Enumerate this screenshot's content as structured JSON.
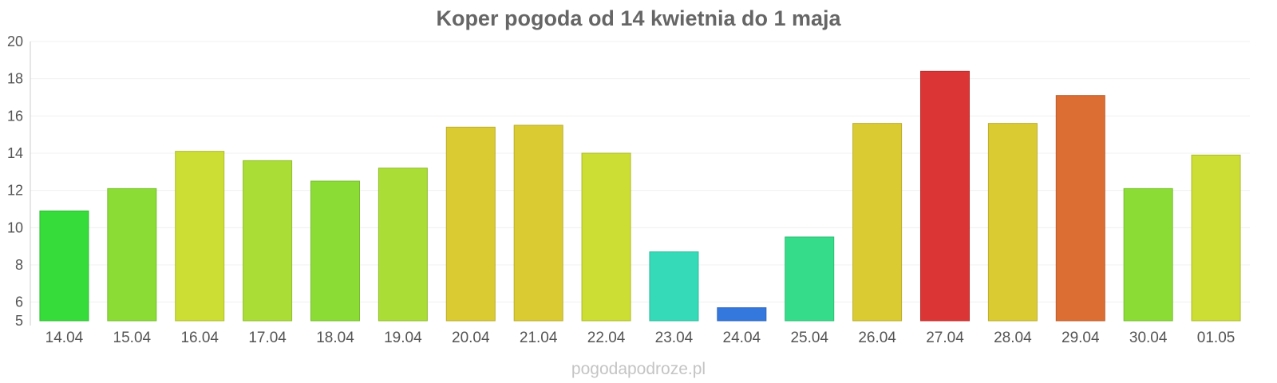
{
  "chart_data": {
    "type": "bar",
    "title": "Koper pogoda od 14 kwietnia do 1 maja",
    "xlabel": "",
    "ylabel": "",
    "categories": [
      "14.04",
      "15.04",
      "16.04",
      "17.04",
      "18.04",
      "19.04",
      "20.04",
      "21.04",
      "22.04",
      "23.04",
      "24.04",
      "25.04",
      "26.04",
      "27.04",
      "28.04",
      "29.04",
      "30.04",
      "01.05"
    ],
    "values": [
      10.9,
      12.1,
      14.1,
      13.6,
      12.5,
      13.2,
      15.4,
      15.5,
      14.0,
      8.7,
      5.7,
      9.5,
      15.6,
      18.4,
      15.6,
      17.1,
      12.1,
      13.9
    ],
    "colors": [
      "#35dc3a",
      "#8bdd35",
      "#ccdd33",
      "#aadd35",
      "#8bdd35",
      "#aadd35",
      "#dbcb33",
      "#dbcb33",
      "#ccdd33",
      "#35dbb9",
      "#3578dd",
      "#35dd8b",
      "#dbcb33",
      "#dc3535",
      "#dbcb33",
      "#dc6e33",
      "#8bdd35",
      "#ccdd33"
    ],
    "ylim": [
      5,
      20
    ],
    "yticks": [
      5,
      6,
      8,
      10,
      12,
      14,
      16,
      18,
      20
    ],
    "grid": true,
    "legend": "none"
  },
  "watermark": "pogodapodroze.pl"
}
